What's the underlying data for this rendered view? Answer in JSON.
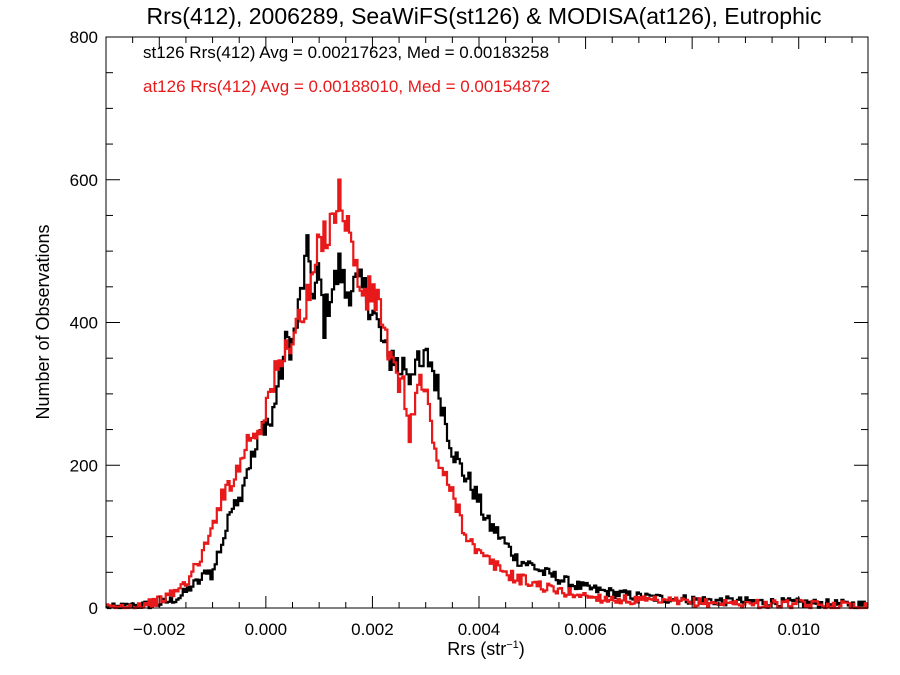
{
  "chart_data": {
    "type": "line",
    "title": "Rrs(412), 2006289, SeaWiFS(st126) & MODISA(at126), Eutrophic",
    "xlabel_base": "Rrs (str",
    "xlabel_sup": "−1",
    "xlabel_end": ")",
    "ylabel": "Number of Observations",
    "xlim": [
      -0.003,
      0.0113
    ],
    "ylim": [
      0,
      800
    ],
    "x_ticks": [
      -0.002,
      0.0,
      0.002,
      0.004,
      0.006,
      0.008,
      0.01
    ],
    "x_tick_labels": [
      "−0.002",
      "0.000",
      "0.002",
      "0.004",
      "0.006",
      "0.008",
      "0.010"
    ],
    "y_ticks": [
      0,
      200,
      400,
      600,
      800
    ],
    "y_tick_labels": [
      "0",
      "200",
      "400",
      "600",
      "800"
    ],
    "grid": false,
    "annotations": [
      {
        "text": "st126 Rrs(412) Avg = 0.00217623, Med = 0.00183258",
        "color": "#000000"
      },
      {
        "text": "at126 Rrs(412) Avg = 0.00188010, Med = 0.00154872",
        "color": "#e8191a"
      }
    ],
    "series": [
      {
        "color": "#000000",
        "x": [
          -0.0029,
          -0.0026,
          -0.0023,
          -0.002,
          -0.0018,
          -0.0016,
          -0.0014,
          -0.0012,
          -0.0011,
          -0.001,
          -0.0009,
          -0.0008,
          -0.0007,
          -0.0006,
          -0.0005,
          -0.0004,
          -0.0003,
          -0.0002,
          -0.0001,
          0.0,
          0.0001,
          0.0002,
          0.0003,
          0.0004,
          0.0005,
          0.0006,
          0.0007,
          0.0008,
          0.0009,
          0.001,
          0.0011,
          0.0012,
          0.0013,
          0.0014,
          0.0015,
          0.0016,
          0.0017,
          0.0018,
          0.0019,
          0.002,
          0.0021,
          0.0022,
          0.0023,
          0.0024,
          0.0025,
          0.0026,
          0.0027,
          0.0028,
          0.0029,
          0.003,
          0.0031,
          0.0032,
          0.0033,
          0.0034,
          0.0035,
          0.0036,
          0.0037,
          0.0038,
          0.0039,
          0.004,
          0.0041,
          0.0042,
          0.0043,
          0.0044,
          0.0045,
          0.0046,
          0.0047,
          0.0048,
          0.005,
          0.0052,
          0.0054,
          0.0056,
          0.0058,
          0.006,
          0.0063,
          0.0066,
          0.007,
          0.0075,
          0.008,
          0.0085,
          0.009,
          0.0095,
          0.01,
          0.0105,
          0.011,
          0.0113
        ],
        "y": [
          0,
          2,
          4,
          6,
          10,
          16,
          30,
          40,
          55,
          45,
          75,
          95,
          120,
          160,
          150,
          185,
          205,
          215,
          245,
          265,
          255,
          305,
          335,
          375,
          370,
          405,
          460,
          500,
          430,
          470,
          400,
          440,
          455,
          480,
          440,
          455,
          450,
          445,
          440,
          420,
          395,
          370,
          345,
          360,
          330,
          345,
          325,
          350,
          330,
          350,
          345,
          315,
          290,
          255,
          225,
          205,
          190,
          180,
          165,
          150,
          130,
          115,
          110,
          100,
          90,
          80,
          70,
          65,
          60,
          50,
          45,
          38,
          32,
          28,
          24,
          20,
          16,
          13,
          12,
          10,
          9,
          8,
          7,
          6,
          5,
          4
        ]
      },
      {
        "color": "#e8191a",
        "x": [
          -0.0029,
          -0.0026,
          -0.0023,
          -0.002,
          -0.0018,
          -0.0016,
          -0.0014,
          -0.0013,
          -0.0012,
          -0.0011,
          -0.001,
          -0.0009,
          -0.0008,
          -0.0007,
          -0.0006,
          -0.0005,
          -0.0004,
          -0.0003,
          -0.0002,
          -0.0001,
          0.0,
          0.0001,
          0.0002,
          0.0003,
          0.0004,
          0.0005,
          0.0006,
          0.0007,
          0.0008,
          0.0009,
          0.001,
          0.0011,
          0.0012,
          0.0013,
          0.0014,
          0.0015,
          0.0016,
          0.0017,
          0.0018,
          0.0019,
          0.002,
          0.0021,
          0.0022,
          0.0023,
          0.0024,
          0.0025,
          0.0026,
          0.0027,
          0.0028,
          0.0029,
          0.003,
          0.0031,
          0.0032,
          0.0033,
          0.0034,
          0.0035,
          0.0036,
          0.0037,
          0.0038,
          0.0039,
          0.004,
          0.0041,
          0.0042,
          0.0043,
          0.0044,
          0.0045,
          0.0046,
          0.0048,
          0.005,
          0.0052,
          0.0054,
          0.0056,
          0.0058,
          0.006,
          0.0063,
          0.0066,
          0.007,
          0.0075,
          0.008,
          0.0085,
          0.009,
          0.0095,
          0.01,
          0.0105,
          0.011,
          0.0113
        ],
        "y": [
          0,
          2,
          5,
          10,
          18,
          28,
          45,
          60,
          75,
          90,
          110,
          145,
          155,
          175,
          185,
          195,
          225,
          240,
          245,
          255,
          285,
          305,
          330,
          340,
          365,
          385,
          400,
          410,
          430,
          470,
          500,
          520,
          545,
          560,
          575,
          555,
          510,
          470,
          445,
          435,
          440,
          430,
          410,
          350,
          330,
          320,
          300,
          250,
          285,
          320,
          300,
          260,
          215,
          190,
          175,
          160,
          145,
          115,
          100,
          85,
          75,
          70,
          65,
          60,
          55,
          50,
          45,
          40,
          35,
          30,
          25,
          22,
          20,
          17,
          14,
          12,
          10,
          9,
          8,
          7,
          6,
          5,
          5,
          4,
          4,
          3
        ]
      }
    ]
  }
}
